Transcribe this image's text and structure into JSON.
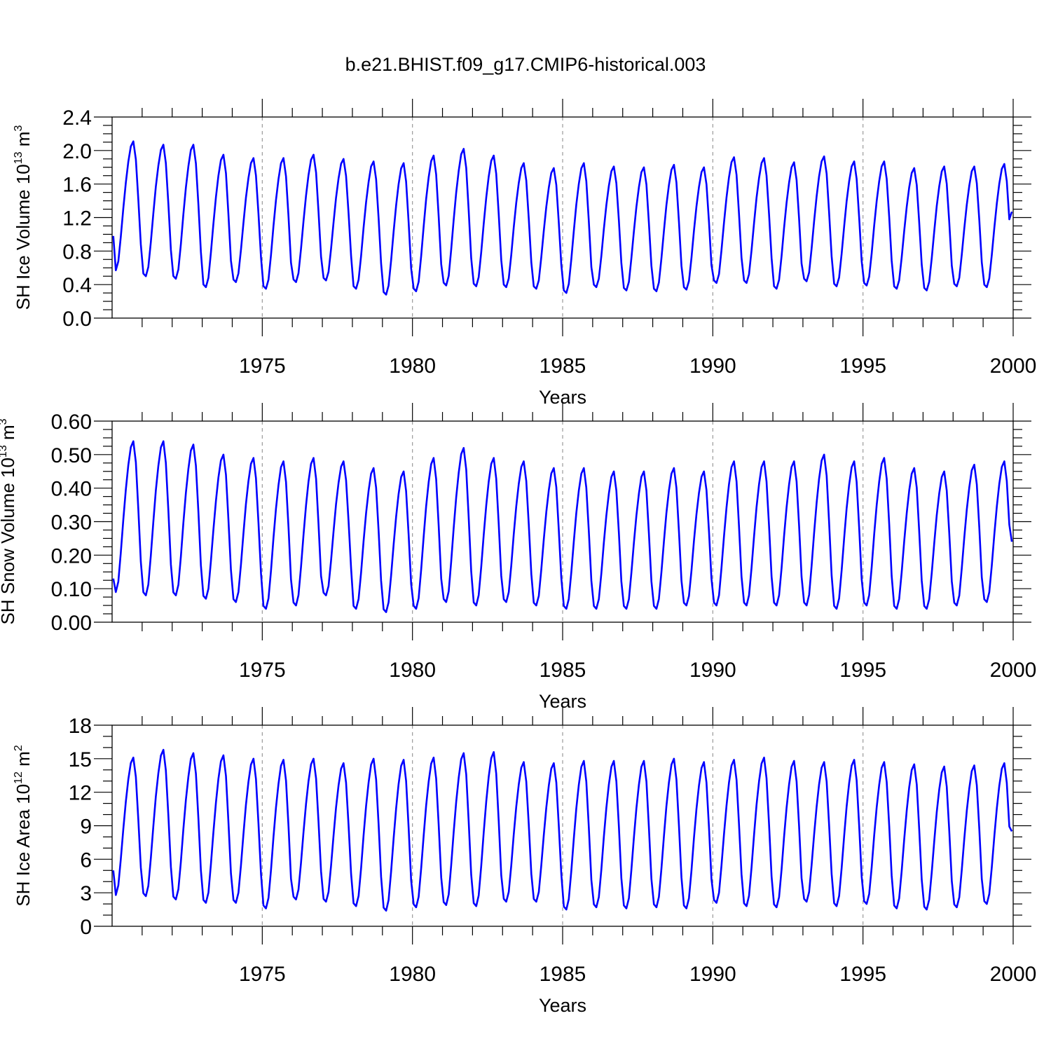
{
  "title": "b.e21.BHIST.f09_g17.CMIP6-historical.003",
  "colors": {
    "line": "#0000ff",
    "axis": "#000000",
    "grid": "#999999"
  },
  "chart_data": [
    {
      "type": "line",
      "name": "ice-volume",
      "ylabel": "SH Ice Volume 10",
      "ylabel_exp": "13",
      "ylabel_unit": "m",
      "ylabel_unit_exp": "3",
      "xlabel": "Years",
      "xlim": [
        1970.0,
        2000.0
      ],
      "ylim": [
        0.0,
        2.4
      ],
      "yticks": [
        "0.0",
        "0.4",
        "0.8",
        "1.2",
        "1.6",
        "2.0",
        "2.4"
      ],
      "yminor": 0.1,
      "xticks": [
        "1975",
        "1980",
        "1985",
        "1990",
        "1995",
        "2000"
      ],
      "xminor": 1,
      "start": 1970.04,
      "step": 0.08333,
      "annual_max": [
        2.11,
        2.07,
        2.07,
        1.95,
        1.91,
        1.91,
        1.95,
        1.9,
        1.87,
        1.85,
        1.94,
        2.02,
        1.94,
        1.85,
        1.79,
        1.85,
        1.81,
        1.8,
        1.83,
        1.8,
        1.92,
        1.91,
        1.86,
        1.93,
        1.87,
        1.87,
        1.79,
        1.81,
        1.81,
        1.84
      ],
      "annual_min": [
        0.57,
        0.5,
        0.47,
        0.37,
        0.43,
        0.35,
        0.43,
        0.45,
        0.35,
        0.28,
        0.32,
        0.39,
        0.38,
        0.37,
        0.35,
        0.3,
        0.37,
        0.33,
        0.32,
        0.34,
        0.42,
        0.42,
        0.35,
        0.44,
        0.38,
        0.39,
        0.35,
        0.33,
        0.38,
        0.37
      ],
      "first_value": 0.98,
      "last_value": 1.27
    },
    {
      "type": "line",
      "name": "snow-volume",
      "ylabel": "SH Snow Volume 10",
      "ylabel_exp": "13",
      "ylabel_unit": "m",
      "ylabel_unit_exp": "3",
      "xlabel": "Years",
      "xlim": [
        1970.0,
        2000.0
      ],
      "ylim": [
        0.0,
        0.6
      ],
      "yticks": [
        "0.00",
        "0.10",
        "0.20",
        "0.30",
        "0.40",
        "0.50",
        "0.60"
      ],
      "yminor": 0.025,
      "xticks": [
        "1975",
        "1980",
        "1985",
        "1990",
        "1995",
        "2000"
      ],
      "xminor": 1,
      "start": 1970.04,
      "step": 0.08333,
      "annual_max": [
        0.54,
        0.54,
        0.53,
        0.5,
        0.49,
        0.48,
        0.49,
        0.48,
        0.46,
        0.45,
        0.49,
        0.52,
        0.49,
        0.48,
        0.46,
        0.46,
        0.45,
        0.45,
        0.46,
        0.45,
        0.48,
        0.48,
        0.48,
        0.5,
        0.48,
        0.49,
        0.46,
        0.45,
        0.47,
        0.48
      ],
      "annual_min": [
        0.09,
        0.08,
        0.08,
        0.07,
        0.06,
        0.04,
        0.05,
        0.08,
        0.04,
        0.03,
        0.04,
        0.06,
        0.05,
        0.06,
        0.05,
        0.04,
        0.04,
        0.04,
        0.04,
        0.05,
        0.05,
        0.05,
        0.05,
        0.05,
        0.04,
        0.05,
        0.04,
        0.04,
        0.05,
        0.06
      ],
      "first_value": 0.13,
      "last_value": 0.24
    },
    {
      "type": "line",
      "name": "ice-area",
      "ylabel": "SH Ice Area 10",
      "ylabel_exp": "12",
      "ylabel_unit": "m",
      "ylabel_unit_exp": "2",
      "xlabel": "Years",
      "xlim": [
        1970.0,
        2000.0
      ],
      "ylim": [
        0,
        18
      ],
      "yticks": [
        "0",
        "3",
        "6",
        "9",
        "12",
        "15",
        "18"
      ],
      "yminor": 1,
      "xticks": [
        "1975",
        "1980",
        "1985",
        "1990",
        "1995",
        "2000"
      ],
      "xminor": 1,
      "start": 1970.04,
      "step": 0.08333,
      "annual_max": [
        15.1,
        15.8,
        15.5,
        15.3,
        15.0,
        14.9,
        15.0,
        14.6,
        15.0,
        14.9,
        15.1,
        15.5,
        15.6,
        14.7,
        14.6,
        14.8,
        14.8,
        14.8,
        15.0,
        14.7,
        14.9,
        15.1,
        14.8,
        14.7,
        14.9,
        14.7,
        14.5,
        14.3,
        14.4,
        14.6
      ],
      "annual_min": [
        2.8,
        2.7,
        2.4,
        2.1,
        2.1,
        1.6,
        2.4,
        2.2,
        1.8,
        1.4,
        1.7,
        1.9,
        1.8,
        2.2,
        2.2,
        1.5,
        1.7,
        1.6,
        1.7,
        1.6,
        2.1,
        1.8,
        1.7,
        2.2,
        1.8,
        2.0,
        1.6,
        1.5,
        1.7,
        2.0
      ],
      "first_value": 5.0,
      "last_value": 8.5
    }
  ]
}
